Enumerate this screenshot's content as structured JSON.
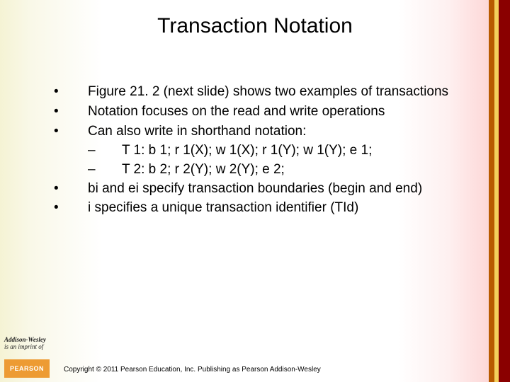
{
  "title": "Transaction Notation",
  "bullets": {
    "b0": "Figure 21. 2 (next slide) shows two examples of transactions",
    "b1": "Notation focuses on the read and write operations",
    "b2": "Can also write in shorthand notation:",
    "b2a": "T 1: b 1; r 1(X); w 1(X); r 1(Y); w 1(Y); e 1;",
    "b2b": "T 2: b 2; r 2(Y); w 2(Y); e 2;",
    "b3": "bi and ei specify transaction boundaries (begin and end)",
    "b4": "i specifies a unique transaction identifier (TId)"
  },
  "footer": {
    "logo_line1": "Addison-Wesley",
    "logo_line2": "is an imprint of",
    "pearson": "PEARSON",
    "copyright": "Copyright © 2011 Pearson Education, Inc. Publishing as Pearson Addison-Wesley"
  },
  "colors": {
    "bar_a": "#b85a00",
    "bar_b": "#f4d05c",
    "bar_c": "#8a0000",
    "pearson_bg": "#ed9b33"
  }
}
